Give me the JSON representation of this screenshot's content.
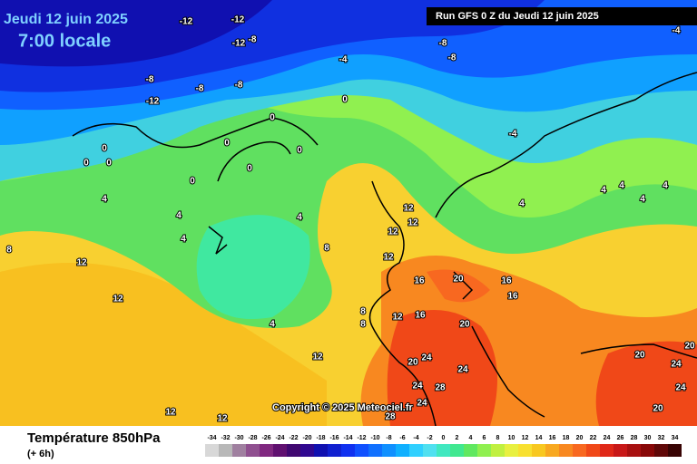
{
  "header": {
    "date": "Jeudi 12 juin 2025",
    "time": "7:00 locale",
    "run": "Run GFS 0 Z du Jeudi 12 juin 2025",
    "copyright": "Copyright © 2025 Meteociel.fr"
  },
  "footer": {
    "title": "Température 850hPa",
    "step": "(+ 6h)"
  },
  "legend": {
    "ticks": [
      -34,
      -32,
      -30,
      -28,
      -26,
      -24,
      -22,
      -20,
      -18,
      -16,
      -14,
      -12,
      -10,
      -8,
      -6,
      -4,
      -2,
      0,
      2,
      4,
      6,
      8,
      10,
      12,
      14,
      16,
      18,
      20,
      22,
      24,
      26,
      28,
      30,
      32,
      34
    ],
    "colors": [
      "#d8d8d8",
      "#b8b8b8",
      "#a080a0",
      "#905090",
      "#802880",
      "#601070",
      "#400870",
      "#300890",
      "#1010b0",
      "#1020d0",
      "#1030f0",
      "#1050ff",
      "#1070ff",
      "#1090ff",
      "#10b0ff",
      "#30d0ff",
      "#50e0f0",
      "#40e8c0",
      "#40e890",
      "#60e860",
      "#90f050",
      "#c0f040",
      "#e8f040",
      "#f8e030",
      "#f8c820",
      "#f8a820",
      "#f88820",
      "#f86820",
      "#f04818",
      "#e02818",
      "#c81818",
      "#a81010",
      "#880808",
      "#600808",
      "#380404"
    ]
  },
  "contour_labels": [
    -12,
    -12,
    -12,
    -8,
    -12,
    -8,
    -8,
    -8,
    -4,
    -8,
    -8,
    -4,
    0,
    0,
    0,
    0,
    0,
    0,
    0,
    0,
    0,
    -4,
    4,
    4,
    4,
    4,
    4,
    4,
    4,
    4,
    4,
    4,
    8,
    8,
    8,
    8,
    12,
    12,
    12,
    12,
    12,
    12,
    12,
    12,
    12,
    12,
    16,
    16,
    16,
    16,
    20,
    20,
    20,
    20,
    20,
    20,
    24,
    24,
    24,
    24,
    24,
    24,
    28,
    28
  ]
}
